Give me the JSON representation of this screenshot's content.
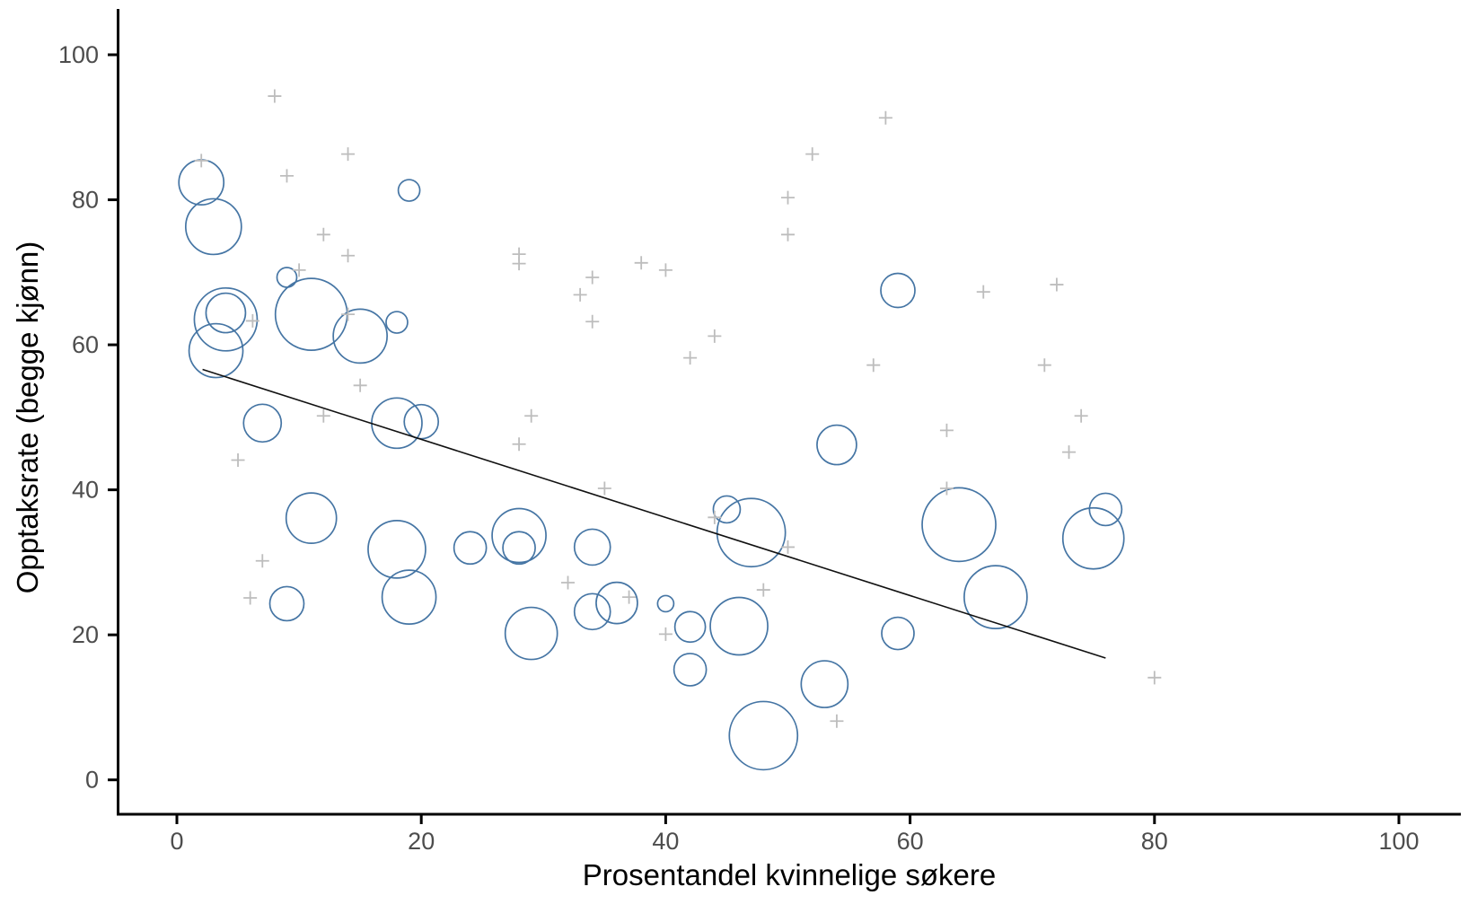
{
  "chart_data": {
    "type": "scatter",
    "title": "",
    "xlabel": "Prosentandel kvinnelige søkere",
    "ylabel": "Opptaksrate (begge kjønn)",
    "xlim": [
      0,
      100
    ],
    "ylim": [
      0,
      100
    ],
    "x_ticks": [
      "0",
      "20",
      "40",
      "60",
      "80",
      "100"
    ],
    "x_tick_values": [
      0,
      20,
      40,
      60,
      80,
      100
    ],
    "y_ticks": [
      "0",
      "20",
      "40",
      "60",
      "80",
      "100"
    ],
    "y_tick_values": [
      0,
      20,
      40,
      60,
      80,
      100
    ],
    "grid": false,
    "legend": "none",
    "colors": {
      "bubble_stroke": "#4575a4",
      "cross_stroke": "#bdbdbd",
      "trend_line": "#111111",
      "axis": "#000000",
      "tick_label": "#4d4d4d"
    },
    "series": [
      {
        "name": "bubbles",
        "marker": "circle-open",
        "color": "#4575a4",
        "points": [
          {
            "x": 2,
            "y": 82.4,
            "r": 25
          },
          {
            "x": 3,
            "y": 76.3,
            "r": 31
          },
          {
            "x": 19,
            "y": 81.3,
            "r": 12
          },
          {
            "x": 9,
            "y": 69.3,
            "r": 11
          },
          {
            "x": 4,
            "y": 63.5,
            "r": 35
          },
          {
            "x": 4,
            "y": 64.4,
            "r": 22
          },
          {
            "x": 3.2,
            "y": 59.2,
            "r": 30
          },
          {
            "x": 11,
            "y": 64.2,
            "r": 40
          },
          {
            "x": 15,
            "y": 61.2,
            "r": 30
          },
          {
            "x": 18,
            "y": 63.1,
            "r": 12
          },
          {
            "x": 7,
            "y": 49.2,
            "r": 21
          },
          {
            "x": 18,
            "y": 49.2,
            "r": 28
          },
          {
            "x": 20,
            "y": 49.4,
            "r": 19
          },
          {
            "x": 54,
            "y": 46.2,
            "r": 22
          },
          {
            "x": 11,
            "y": 36.1,
            "r": 28
          },
          {
            "x": 18,
            "y": 31.8,
            "r": 32
          },
          {
            "x": 24,
            "y": 32,
            "r": 18
          },
          {
            "x": 28,
            "y": 33.7,
            "r": 30
          },
          {
            "x": 28,
            "y": 32,
            "r": 18
          },
          {
            "x": 34,
            "y": 32.1,
            "r": 20
          },
          {
            "x": 45,
            "y": 37.3,
            "r": 15
          },
          {
            "x": 47,
            "y": 34.1,
            "r": 38
          },
          {
            "x": 64,
            "y": 35.2,
            "r": 41
          },
          {
            "x": 76,
            "y": 37.3,
            "r": 18
          },
          {
            "x": 75,
            "y": 33.3,
            "r": 34
          },
          {
            "x": 59,
            "y": 67.5,
            "r": 19
          },
          {
            "x": 9,
            "y": 24.3,
            "r": 19
          },
          {
            "x": 19,
            "y": 25.2,
            "r": 30
          },
          {
            "x": 29,
            "y": 20.2,
            "r": 29
          },
          {
            "x": 34,
            "y": 23.2,
            "r": 20
          },
          {
            "x": 36,
            "y": 24.4,
            "r": 23
          },
          {
            "x": 40,
            "y": 24.3,
            "r": 9
          },
          {
            "x": 42,
            "y": 21.1,
            "r": 17
          },
          {
            "x": 46,
            "y": 21.2,
            "r": 32
          },
          {
            "x": 42,
            "y": 15.2,
            "r": 18
          },
          {
            "x": 48,
            "y": 6.1,
            "r": 38
          },
          {
            "x": 53,
            "y": 13.2,
            "r": 26
          },
          {
            "x": 59,
            "y": 20.2,
            "r": 18
          },
          {
            "x": 67,
            "y": 25.2,
            "r": 35
          }
        ]
      },
      {
        "name": "crosses",
        "marker": "plus",
        "color": "#bdbdbd",
        "points": [
          {
            "x": 8,
            "y": 94.3
          },
          {
            "x": 2,
            "y": 85.4
          },
          {
            "x": 14,
            "y": 86.3
          },
          {
            "x": 9,
            "y": 83.3
          },
          {
            "x": 12,
            "y": 75.2
          },
          {
            "x": 14,
            "y": 72.3
          },
          {
            "x": 10,
            "y": 70.3
          },
          {
            "x": 52,
            "y": 86.3
          },
          {
            "x": 50,
            "y": 80.3
          },
          {
            "x": 50,
            "y": 75.2
          },
          {
            "x": 28,
            "y": 72.5
          },
          {
            "x": 28,
            "y": 71.2
          },
          {
            "x": 38,
            "y": 71.3
          },
          {
            "x": 40,
            "y": 70.3
          },
          {
            "x": 34,
            "y": 69.3
          },
          {
            "x": 33,
            "y": 66.9
          },
          {
            "x": 58,
            "y": 91.3
          },
          {
            "x": 66,
            "y": 67.3
          },
          {
            "x": 72,
            "y": 68.3
          },
          {
            "x": 6.2,
            "y": 63.3
          },
          {
            "x": 14,
            "y": 64.2
          },
          {
            "x": 15,
            "y": 54.4
          },
          {
            "x": 12,
            "y": 50.2
          },
          {
            "x": 5,
            "y": 44.1
          },
          {
            "x": 7,
            "y": 30.2
          },
          {
            "x": 28,
            "y": 46.3
          },
          {
            "x": 29,
            "y": 50.2
          },
          {
            "x": 34,
            "y": 63.2
          },
          {
            "x": 44,
            "y": 61.2
          },
          {
            "x": 42,
            "y": 58.2
          },
          {
            "x": 57,
            "y": 57.2
          },
          {
            "x": 71,
            "y": 57.2
          },
          {
            "x": 74,
            "y": 50.2
          },
          {
            "x": 63,
            "y": 48.2
          },
          {
            "x": 73,
            "y": 45.2
          },
          {
            "x": 63,
            "y": 40.2
          },
          {
            "x": 35,
            "y": 40.2
          },
          {
            "x": 44,
            "y": 36.2
          },
          {
            "x": 50,
            "y": 32.1
          },
          {
            "x": 32,
            "y": 27.2
          },
          {
            "x": 37,
            "y": 25.2
          },
          {
            "x": 6,
            "y": 25.1
          },
          {
            "x": 48,
            "y": 26.2
          },
          {
            "x": 40,
            "y": 20.1
          },
          {
            "x": 54,
            "y": 8.1
          },
          {
            "x": 80,
            "y": 14.1
          }
        ]
      }
    ],
    "trend_line": {
      "x1": 2.1,
      "y1": 56.6,
      "x2": 76,
      "y2": 16.8
    }
  }
}
